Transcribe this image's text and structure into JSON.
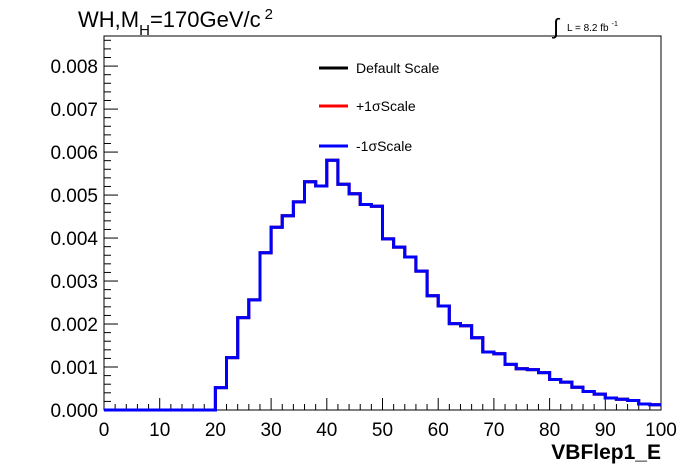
{
  "header": {
    "title": {
      "main_a": "WH,M",
      "sub": "H",
      "main_b": "=170GeV/c",
      "sup": "2"
    },
    "lumi": {
      "integral": "∫",
      "text": "L = 8.2 fb",
      "sup": "-1"
    }
  },
  "chart_data": {
    "type": "line",
    "xlabel": "VBFlep1_E",
    "ylabel": "",
    "xlim": [
      0,
      100
    ],
    "ylim": [
      0,
      0.0087
    ],
    "x_ticks": [
      "0",
      "10",
      "20",
      "30",
      "40",
      "50",
      "60",
      "70",
      "80",
      "90",
      "100"
    ],
    "y_ticks": [
      "0.000",
      "0.001",
      "0.002",
      "0.003",
      "0.004",
      "0.005",
      "0.006",
      "0.007",
      "0.008"
    ],
    "grid": false,
    "legend_position": "top-center",
    "bin_edges": [
      0,
      2,
      4,
      6,
      8,
      10,
      12,
      14,
      16,
      18,
      20,
      22,
      24,
      26,
      28,
      30,
      32,
      34,
      36,
      38,
      40,
      42,
      44,
      46,
      48,
      50,
      52,
      54,
      56,
      58,
      60,
      62,
      64,
      66,
      68,
      70,
      72,
      74,
      76,
      78,
      80,
      82,
      84,
      86,
      88,
      90,
      92,
      94,
      96,
      98,
      100
    ],
    "series": [
      {
        "name": "Default Scale",
        "color": "#000000",
        "values": [
          0,
          0,
          0,
          0,
          0,
          0,
          0,
          0,
          0,
          0,
          0.00052,
          0.00122,
          0.00215,
          0.00256,
          0.00366,
          0.00425,
          0.00452,
          0.00484,
          0.00531,
          0.00521,
          0.00581,
          0.00525,
          0.00503,
          0.00478,
          0.00474,
          0.00398,
          0.00379,
          0.00356,
          0.00323,
          0.00266,
          0.00242,
          0.00201,
          0.00196,
          0.00168,
          0.00135,
          0.00131,
          0.00106,
          0.00096,
          0.00094,
          0.00087,
          0.00071,
          0.00065,
          0.00053,
          0.00043,
          0.00037,
          0.00028,
          0.00025,
          0.00022,
          0.00014,
          0.00012
        ]
      },
      {
        "name": "+1σScale",
        "color": "#ff0000",
        "values": [
          0,
          0,
          0,
          0,
          0,
          0,
          0,
          0,
          0,
          0,
          0.00052,
          0.00122,
          0.00215,
          0.00256,
          0.00366,
          0.00425,
          0.00452,
          0.00484,
          0.00531,
          0.00521,
          0.00581,
          0.00525,
          0.00503,
          0.00478,
          0.00474,
          0.00398,
          0.00379,
          0.00356,
          0.00323,
          0.00266,
          0.00242,
          0.00201,
          0.00196,
          0.00168,
          0.00135,
          0.00131,
          0.00106,
          0.00096,
          0.00094,
          0.00087,
          0.00071,
          0.00065,
          0.00053,
          0.00043,
          0.00037,
          0.00028,
          0.00025,
          0.00022,
          0.00014,
          0.00012
        ]
      },
      {
        "name": "-1σScale",
        "color": "#0000ff",
        "values": [
          0,
          0,
          0,
          0,
          0,
          0,
          0,
          0,
          0,
          0,
          0.00052,
          0.00122,
          0.00215,
          0.00256,
          0.00366,
          0.00425,
          0.00452,
          0.00484,
          0.00531,
          0.00521,
          0.00581,
          0.00525,
          0.00503,
          0.00478,
          0.00474,
          0.00398,
          0.00379,
          0.00356,
          0.00323,
          0.00266,
          0.00242,
          0.00201,
          0.00196,
          0.00168,
          0.00135,
          0.00131,
          0.00106,
          0.00096,
          0.00094,
          0.00087,
          0.00071,
          0.00065,
          0.00053,
          0.00043,
          0.00037,
          0.00028,
          0.00025,
          0.00022,
          0.00014,
          0.00012
        ]
      }
    ]
  }
}
